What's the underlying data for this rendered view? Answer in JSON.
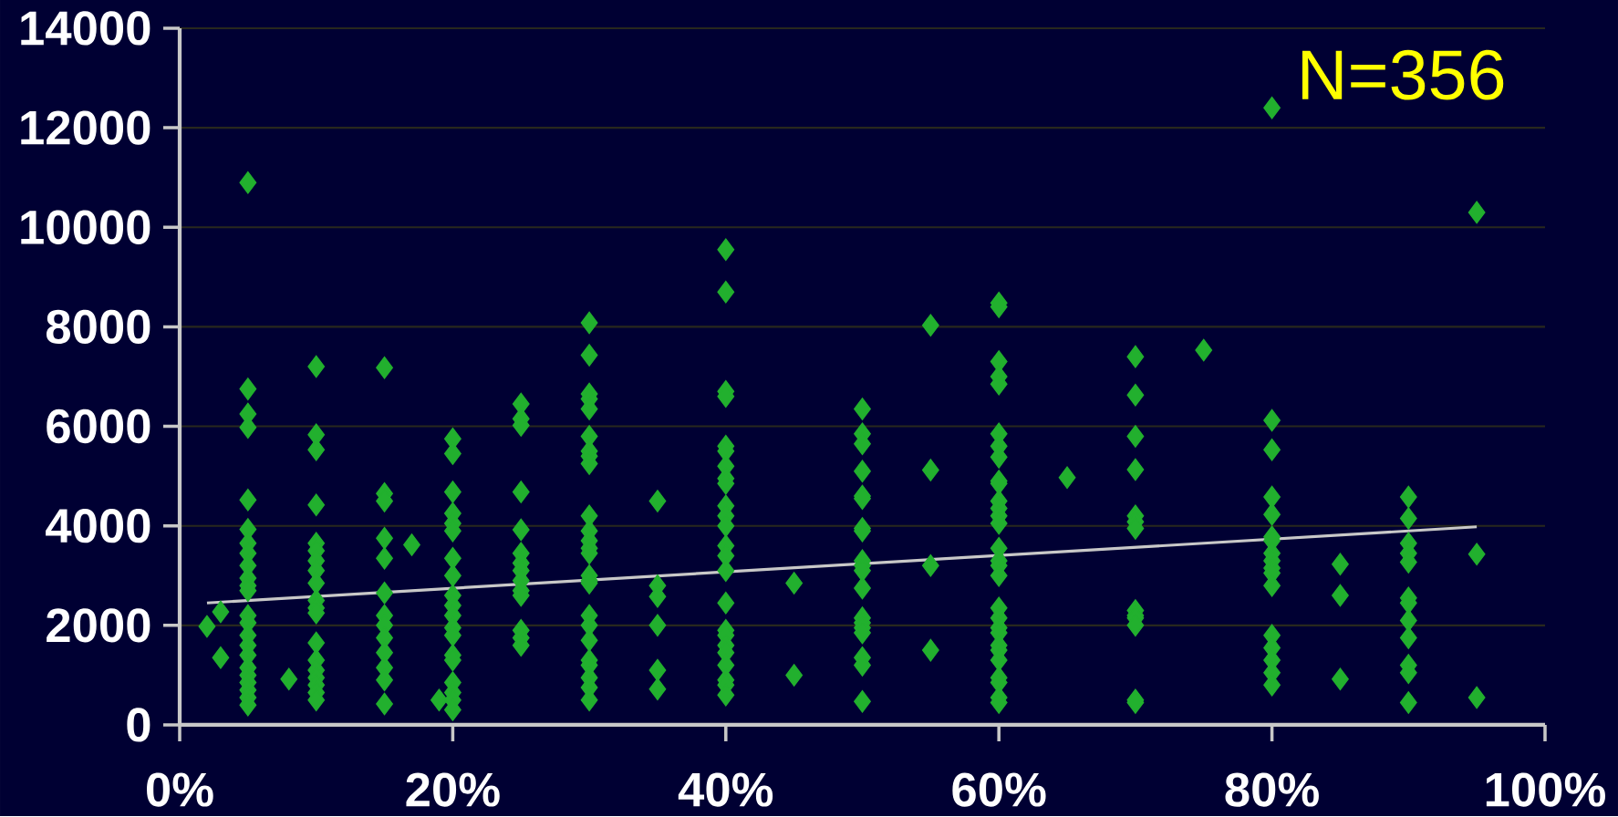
{
  "chart_data": {
    "type": "scatter",
    "xlim": [
      0,
      100
    ],
    "ylim": [
      0,
      14000
    ],
    "xticks": [
      {
        "value": 0,
        "label": "0%"
      },
      {
        "value": 20,
        "label": "20%"
      },
      {
        "value": 40,
        "label": "40%"
      },
      {
        "value": 60,
        "label": "60%"
      },
      {
        "value": 80,
        "label": "80%"
      },
      {
        "value": 100,
        "label": "100%"
      }
    ],
    "yticks": [
      0,
      2000,
      4000,
      6000,
      8000,
      10000,
      12000,
      14000
    ],
    "grid": "y",
    "marker": "diamond",
    "annotations": [
      "N=356"
    ],
    "series": [
      {
        "color": "#22b02e",
        "x": [
          2,
          3,
          3,
          5,
          5,
          5,
          5,
          5,
          5,
          5,
          5,
          5,
          5,
          5,
          5,
          5,
          5,
          5,
          5,
          5,
          5,
          5,
          5,
          5,
          5,
          5,
          8,
          10,
          10,
          10,
          10,
          10,
          10,
          10,
          10,
          10,
          10,
          10,
          10,
          10,
          10,
          10,
          10,
          10,
          10,
          10,
          15,
          15,
          15,
          15,
          15,
          15,
          15,
          15,
          15,
          15,
          15,
          15,
          15,
          17,
          19,
          20,
          20,
          20,
          20,
          20,
          20,
          20,
          20,
          20,
          20,
          20,
          20,
          20,
          20,
          20,
          20,
          20,
          20,
          20,
          25,
          25,
          25,
          25,
          25,
          25,
          25,
          25,
          25,
          25,
          25,
          25,
          25,
          25,
          30,
          30,
          30,
          30,
          30,
          30,
          30,
          30,
          30,
          30,
          30,
          30,
          30,
          30,
          30,
          30,
          30,
          30,
          30,
          30,
          30,
          30,
          30,
          30,
          30,
          35,
          35,
          35,
          35,
          35,
          35,
          40,
          40,
          40,
          40,
          40,
          40,
          40,
          40,
          40,
          40,
          40,
          40,
          40,
          40,
          40,
          40,
          40,
          40,
          40,
          40,
          40,
          40,
          40,
          40,
          45,
          45,
          50,
          50,
          50,
          50,
          50,
          50,
          50,
          50,
          50,
          50,
          50,
          50,
          50,
          50,
          50,
          50,
          50,
          50,
          50,
          55,
          55,
          55,
          55,
          60,
          60,
          60,
          60,
          60,
          60,
          60,
          60,
          60,
          60,
          60,
          60,
          60,
          60,
          60,
          60,
          60,
          60,
          60,
          60,
          60,
          60,
          60,
          60,
          60,
          60,
          60,
          60,
          60,
          65,
          70,
          70,
          70,
          70,
          70,
          70,
          70,
          70,
          70,
          70,
          70,
          70,
          70,
          75,
          80,
          80,
          80,
          80,
          80,
          80,
          80,
          80,
          80,
          80,
          80,
          80,
          80,
          80,
          80,
          80,
          80,
          85,
          85,
          85,
          90,
          90,
          90,
          90,
          90,
          90,
          90,
          90,
          90,
          90,
          90,
          90,
          95,
          95,
          95
        ],
        "values": [
          1980,
          2270,
          1350,
          10900,
          6750,
          6250,
          5980,
          4520,
          3930,
          3650,
          3450,
          3200,
          2950,
          2800,
          2700,
          2200,
          2050,
          1800,
          1600,
          1400,
          1150,
          1000,
          850,
          700,
          550,
          400,
          920,
          7200,
          5830,
          5530,
          4420,
          3650,
          3500,
          3300,
          3100,
          2850,
          2500,
          2350,
          2250,
          1650,
          1300,
          1100,
          950,
          800,
          650,
          500,
          7180,
          4650,
          4500,
          3750,
          3350,
          2650,
          2200,
          2000,
          1750,
          1450,
          1150,
          900,
          420,
          3620,
          500,
          5750,
          5450,
          4680,
          4250,
          4050,
          3900,
          3350,
          3000,
          2600,
          2400,
          2200,
          1950,
          1800,
          1400,
          1300,
          850,
          650,
          500,
          300,
          6450,
          6150,
          6020,
          4680,
          3920,
          3450,
          3250,
          3100,
          2900,
          2700,
          2600,
          1900,
          1750,
          1600,
          8080,
          7430,
          6650,
          6550,
          6350,
          5800,
          5500,
          5400,
          5250,
          4200,
          3900,
          3700,
          3550,
          3450,
          3000,
          2900,
          2850,
          2200,
          2000,
          1700,
          1300,
          1200,
          950,
          750,
          500,
          4500,
          2800,
          2580,
          2000,
          1100,
          720,
          9550,
          8700,
          6700,
          6600,
          5600,
          5500,
          5200,
          4950,
          4850,
          4400,
          4200,
          4000,
          3600,
          3400,
          3100,
          2450,
          1900,
          1800,
          1600,
          1450,
          1200,
          900,
          800,
          600,
          2850,
          1000,
          6350,
          5850,
          5650,
          5100,
          4600,
          4550,
          3950,
          3900,
          3300,
          3200,
          3100,
          2750,
          2150,
          2050,
          1950,
          1850,
          1350,
          1200,
          470,
          8030,
          5120,
          3200,
          1500,
          8480,
          8400,
          7300,
          7000,
          6850,
          5850,
          5600,
          5380,
          4900,
          4850,
          4500,
          4350,
          4200,
          4050,
          3550,
          3300,
          3200,
          3000,
          2350,
          2150,
          1950,
          1850,
          1600,
          1500,
          1300,
          950,
          850,
          550,
          450,
          4970,
          7400,
          6630,
          5800,
          5130,
          4200,
          4080,
          3950,
          2300,
          2200,
          2150,
          2000,
          500,
          450,
          7530,
          12400,
          6120,
          5530,
          4580,
          4230,
          3780,
          3700,
          3450,
          3300,
          3150,
          3050,
          2800,
          1800,
          1550,
          1300,
          1050,
          800,
          3230,
          2600,
          920,
          4580,
          4150,
          3650,
          3450,
          3270,
          2550,
          2450,
          2100,
          1750,
          1200,
          1050,
          450,
          10300,
          3430,
          550
        ]
      },
      {
        "type": "line",
        "color": "#c8c8c8",
        "marker": "none",
        "x": [
          2,
          95
        ],
        "values": [
          2450,
          3980
        ]
      }
    ]
  }
}
